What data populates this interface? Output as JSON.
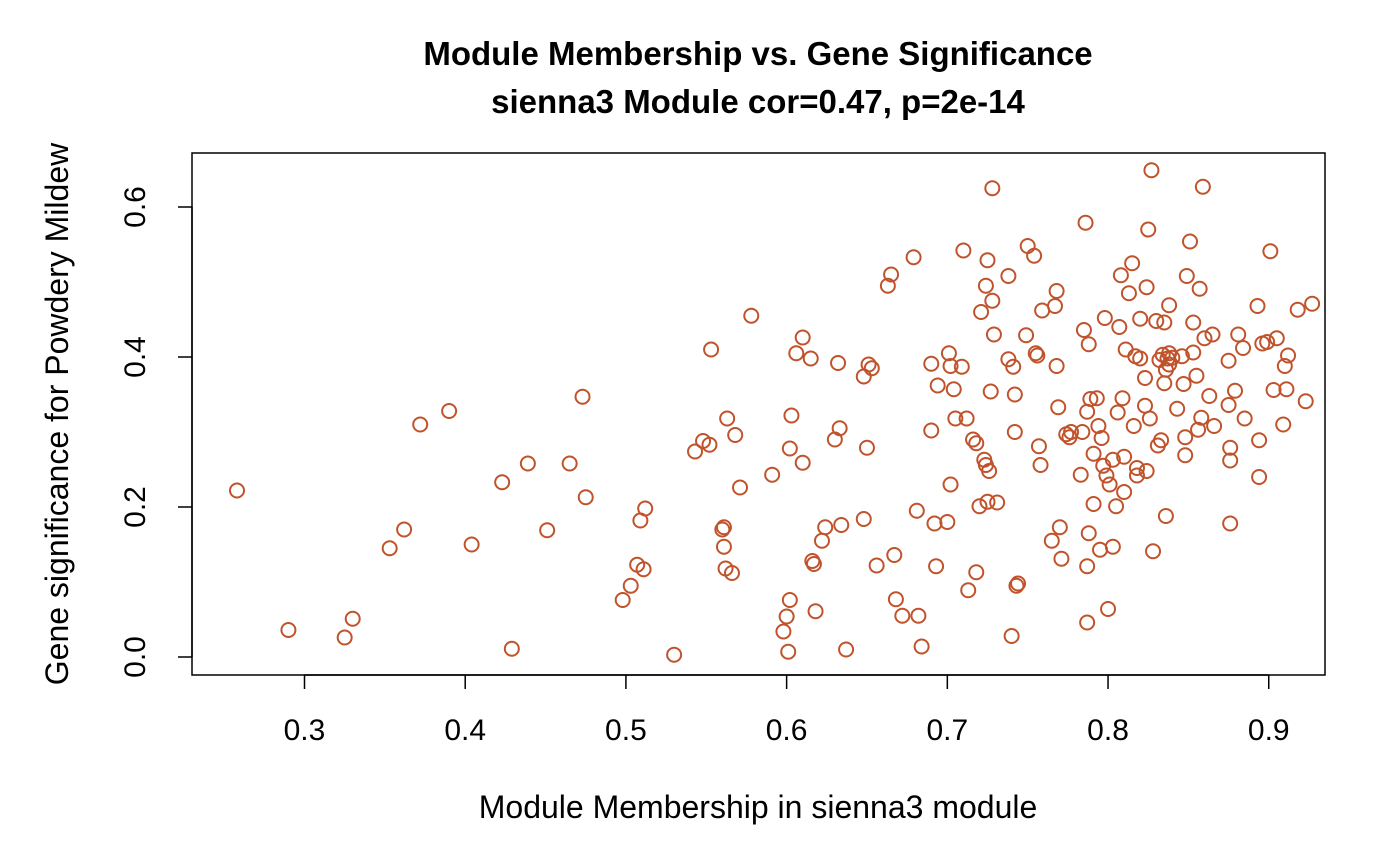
{
  "chart_data": {
    "type": "scatter",
    "title": "Module Membership vs. Gene Significance",
    "subtitle": "sienna3 Module cor=0.47, p=2e-14",
    "xlabel": "Module Membership in sienna3 module",
    "ylabel": "Gene significance for Powdery Mildew",
    "xlim": [
      0.23,
      0.935
    ],
    "ylim": [
      -0.024,
      0.672
    ],
    "xticks": [
      0.3,
      0.4,
      0.5,
      0.6,
      0.7,
      0.8,
      0.9
    ],
    "yticks": [
      0.0,
      0.2,
      0.4,
      0.6
    ],
    "xtick_labels": [
      "0.3",
      "0.4",
      "0.5",
      "0.6",
      "0.7",
      "0.8",
      "0.9"
    ],
    "ytick_labels": [
      "0.0",
      "0.2",
      "0.4",
      "0.6"
    ],
    "marker": "open-circle",
    "grid": false,
    "legend": "none",
    "point_color": "#C0532B",
    "points": [
      [
        0.258,
        0.222
      ],
      [
        0.29,
        0.036
      ],
      [
        0.325,
        0.026
      ],
      [
        0.33,
        0.051
      ],
      [
        0.353,
        0.145
      ],
      [
        0.362,
        0.17
      ],
      [
        0.372,
        0.31
      ],
      [
        0.39,
        0.328
      ],
      [
        0.404,
        0.15
      ],
      [
        0.423,
        0.233
      ],
      [
        0.429,
        0.011
      ],
      [
        0.439,
        0.258
      ],
      [
        0.451,
        0.169
      ],
      [
        0.465,
        0.258
      ],
      [
        0.473,
        0.347
      ],
      [
        0.475,
        0.213
      ],
      [
        0.498,
        0.076
      ],
      [
        0.503,
        0.095
      ],
      [
        0.507,
        0.123
      ],
      [
        0.509,
        0.182
      ],
      [
        0.511,
        0.117
      ],
      [
        0.512,
        0.198
      ],
      [
        0.53,
        0.003
      ],
      [
        0.543,
        0.274
      ],
      [
        0.548,
        0.288
      ],
      [
        0.552,
        0.283
      ],
      [
        0.553,
        0.41
      ],
      [
        0.56,
        0.17
      ],
      [
        0.561,
        0.173
      ],
      [
        0.561,
        0.147
      ],
      [
        0.562,
        0.118
      ],
      [
        0.563,
        0.318
      ],
      [
        0.566,
        0.112
      ],
      [
        0.568,
        0.296
      ],
      [
        0.571,
        0.226
      ],
      [
        0.578,
        0.455
      ],
      [
        0.591,
        0.243
      ],
      [
        0.598,
        0.034
      ],
      [
        0.6,
        0.054
      ],
      [
        0.601,
        0.007
      ],
      [
        0.602,
        0.076
      ],
      [
        0.602,
        0.278
      ],
      [
        0.603,
        0.322
      ],
      [
        0.606,
        0.405
      ],
      [
        0.61,
        0.259
      ],
      [
        0.61,
        0.426
      ],
      [
        0.615,
        0.398
      ],
      [
        0.616,
        0.128
      ],
      [
        0.617,
        0.124
      ],
      [
        0.618,
        0.061
      ],
      [
        0.622,
        0.155
      ],
      [
        0.624,
        0.173
      ],
      [
        0.63,
        0.29
      ],
      [
        0.632,
        0.392
      ],
      [
        0.633,
        0.305
      ],
      [
        0.634,
        0.176
      ],
      [
        0.637,
        0.01
      ],
      [
        0.648,
        0.184
      ],
      [
        0.648,
        0.374
      ],
      [
        0.651,
        0.39
      ],
      [
        0.65,
        0.279
      ],
      [
        0.653,
        0.385
      ],
      [
        0.656,
        0.122
      ],
      [
        0.663,
        0.495
      ],
      [
        0.665,
        0.51
      ],
      [
        0.667,
        0.136
      ],
      [
        0.668,
        0.077
      ],
      [
        0.672,
        0.055
      ],
      [
        0.679,
        0.533
      ],
      [
        0.681,
        0.195
      ],
      [
        0.682,
        0.055
      ],
      [
        0.684,
        0.014
      ],
      [
        0.69,
        0.391
      ],
      [
        0.69,
        0.302
      ],
      [
        0.692,
        0.178
      ],
      [
        0.693,
        0.121
      ],
      [
        0.694,
        0.362
      ],
      [
        0.7,
        0.18
      ],
      [
        0.701,
        0.405
      ],
      [
        0.702,
        0.23
      ],
      [
        0.702,
        0.388
      ],
      [
        0.704,
        0.357
      ],
      [
        0.705,
        0.318
      ],
      [
        0.709,
        0.387
      ],
      [
        0.71,
        0.542
      ],
      [
        0.712,
        0.318
      ],
      [
        0.713,
        0.089
      ],
      [
        0.716,
        0.29
      ],
      [
        0.718,
        0.113
      ],
      [
        0.718,
        0.285
      ],
      [
        0.72,
        0.201
      ],
      [
        0.721,
        0.46
      ],
      [
        0.723,
        0.263
      ],
      [
        0.724,
        0.256
      ],
      [
        0.724,
        0.495
      ],
      [
        0.725,
        0.529
      ],
      [
        0.725,
        0.207
      ],
      [
        0.726,
        0.248
      ],
      [
        0.727,
        0.354
      ],
      [
        0.728,
        0.475
      ],
      [
        0.728,
        0.625
      ],
      [
        0.729,
        0.43
      ],
      [
        0.731,
        0.206
      ],
      [
        0.738,
        0.397
      ],
      [
        0.738,
        0.508
      ],
      [
        0.74,
        0.028
      ],
      [
        0.741,
        0.387
      ],
      [
        0.742,
        0.35
      ],
      [
        0.742,
        0.3
      ],
      [
        0.743,
        0.095
      ],
      [
        0.744,
        0.098
      ],
      [
        0.749,
        0.429
      ],
      [
        0.75,
        0.548
      ],
      [
        0.754,
        0.535
      ],
      [
        0.755,
        0.405
      ],
      [
        0.756,
        0.402
      ],
      [
        0.757,
        0.281
      ],
      [
        0.758,
        0.256
      ],
      [
        0.759,
        0.462
      ],
      [
        0.765,
        0.155
      ],
      [
        0.767,
        0.468
      ],
      [
        0.768,
        0.388
      ],
      [
        0.768,
        0.488
      ],
      [
        0.769,
        0.333
      ],
      [
        0.77,
        0.173
      ],
      [
        0.771,
        0.131
      ],
      [
        0.774,
        0.297
      ],
      [
        0.776,
        0.293
      ],
      [
        0.777,
        0.3
      ],
      [
        0.783,
        0.243
      ],
      [
        0.784,
        0.3
      ],
      [
        0.785,
        0.436
      ],
      [
        0.786,
        0.579
      ],
      [
        0.787,
        0.327
      ],
      [
        0.787,
        0.046
      ],
      [
        0.787,
        0.121
      ],
      [
        0.788,
        0.417
      ],
      [
        0.788,
        0.165
      ],
      [
        0.789,
        0.344
      ],
      [
        0.791,
        0.204
      ],
      [
        0.791,
        0.271
      ],
      [
        0.793,
        0.345
      ],
      [
        0.794,
        0.308
      ],
      [
        0.795,
        0.143
      ],
      [
        0.796,
        0.292
      ],
      [
        0.797,
        0.255
      ],
      [
        0.798,
        0.452
      ],
      [
        0.799,
        0.242
      ],
      [
        0.8,
        0.064
      ],
      [
        0.801,
        0.23
      ],
      [
        0.803,
        0.263
      ],
      [
        0.803,
        0.147
      ],
      [
        0.805,
        0.201
      ],
      [
        0.806,
        0.326
      ],
      [
        0.807,
        0.44
      ],
      [
        0.808,
        0.509
      ],
      [
        0.809,
        0.345
      ],
      [
        0.81,
        0.22
      ],
      [
        0.81,
        0.267
      ],
      [
        0.811,
        0.41
      ],
      [
        0.813,
        0.485
      ],
      [
        0.815,
        0.525
      ],
      [
        0.816,
        0.308
      ],
      [
        0.817,
        0.401
      ],
      [
        0.818,
        0.252
      ],
      [
        0.818,
        0.242
      ],
      [
        0.82,
        0.398
      ],
      [
        0.82,
        0.451
      ],
      [
        0.823,
        0.372
      ],
      [
        0.823,
        0.335
      ],
      [
        0.824,
        0.493
      ],
      [
        0.824,
        0.248
      ],
      [
        0.825,
        0.57
      ],
      [
        0.826,
        0.318
      ],
      [
        0.827,
        0.649
      ],
      [
        0.828,
        0.141
      ],
      [
        0.83,
        0.448
      ],
      [
        0.831,
        0.282
      ],
      [
        0.832,
        0.396
      ],
      [
        0.833,
        0.289
      ],
      [
        0.834,
        0.403
      ],
      [
        0.835,
        0.446
      ],
      [
        0.835,
        0.365
      ],
      [
        0.836,
        0.188
      ],
      [
        0.836,
        0.383
      ],
      [
        0.837,
        0.398
      ],
      [
        0.838,
        0.405
      ],
      [
        0.838,
        0.39
      ],
      [
        0.838,
        0.469
      ],
      [
        0.84,
        0.399
      ],
      [
        0.843,
        0.331
      ],
      [
        0.846,
        0.401
      ],
      [
        0.847,
        0.364
      ],
      [
        0.848,
        0.293
      ],
      [
        0.848,
        0.269
      ],
      [
        0.849,
        0.508
      ],
      [
        0.851,
        0.554
      ],
      [
        0.853,
        0.446
      ],
      [
        0.853,
        0.406
      ],
      [
        0.855,
        0.375
      ],
      [
        0.856,
        0.303
      ],
      [
        0.857,
        0.491
      ],
      [
        0.858,
        0.319
      ],
      [
        0.859,
        0.627
      ],
      [
        0.86,
        0.425
      ],
      [
        0.863,
        0.348
      ],
      [
        0.865,
        0.43
      ],
      [
        0.866,
        0.308
      ],
      [
        0.875,
        0.395
      ],
      [
        0.875,
        0.336
      ],
      [
        0.876,
        0.178
      ],
      [
        0.876,
        0.262
      ],
      [
        0.876,
        0.279
      ],
      [
        0.879,
        0.355
      ],
      [
        0.881,
        0.43
      ],
      [
        0.884,
        0.412
      ],
      [
        0.885,
        0.318
      ],
      [
        0.893,
        0.468
      ],
      [
        0.894,
        0.289
      ],
      [
        0.894,
        0.24
      ],
      [
        0.896,
        0.418
      ],
      [
        0.899,
        0.42
      ],
      [
        0.901,
        0.541
      ],
      [
        0.903,
        0.356
      ],
      [
        0.905,
        0.425
      ],
      [
        0.909,
        0.31
      ],
      [
        0.91,
        0.388
      ],
      [
        0.911,
        0.357
      ],
      [
        0.912,
        0.402
      ],
      [
        0.918,
        0.463
      ],
      [
        0.923,
        0.341
      ],
      [
        0.927,
        0.471
      ]
    ]
  }
}
